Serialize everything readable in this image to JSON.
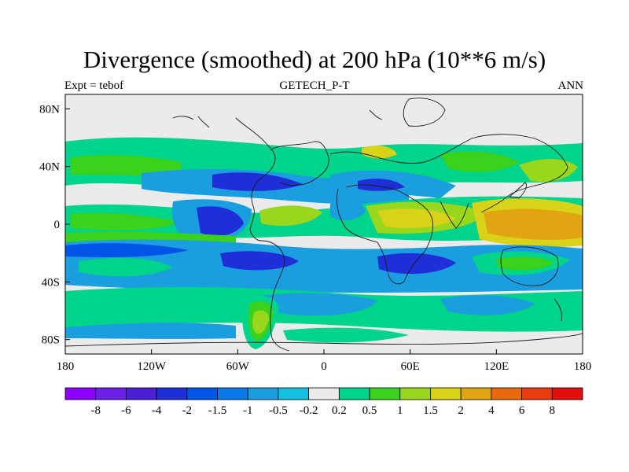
{
  "title": "Divergence (smoothed) at 200 hPa (10**6 m/s)",
  "subtitle": {
    "left": "Expt = tebof",
    "center": "GETECH_P-T",
    "right": "ANN"
  },
  "chart_data": {
    "type": "heatmap",
    "projection": "cylindrical-equidistant",
    "variable": "Divergence (smoothed)",
    "level": "200 hPa",
    "units": "10**6 m/s",
    "lon_range": [
      -180,
      180
    ],
    "lat_range": [
      -90,
      90
    ],
    "x_ticks": [
      {
        "value": -180,
        "label": "180"
      },
      {
        "value": -120,
        "label": "120W"
      },
      {
        "value": -60,
        "label": "60W"
      },
      {
        "value": 0,
        "label": "0"
      },
      {
        "value": 60,
        "label": "60E"
      },
      {
        "value": 120,
        "label": "120E"
      },
      {
        "value": 180,
        "label": "180"
      }
    ],
    "y_ticks": [
      {
        "value": 80,
        "label": "80N"
      },
      {
        "value": 40,
        "label": "40N"
      },
      {
        "value": 0,
        "label": "0"
      },
      {
        "value": -40,
        "label": "40S"
      },
      {
        "value": -80,
        "label": "80S"
      }
    ],
    "colorbar": {
      "levels": [
        "-8",
        "-6",
        "-4",
        "-2",
        "-1.5",
        "-1",
        "-0.5",
        "-0.2",
        "0.2",
        "0.5",
        "1",
        "1.5",
        "2",
        "4",
        "6",
        "8"
      ],
      "colors": [
        "#8b00ff",
        "#6a1ee6",
        "#4a1fd6",
        "#1e2fd8",
        "#0055e6",
        "#0a7ae6",
        "#1a9ee0",
        "#14bfe0",
        "#ebebeb",
        "#00d38a",
        "#3ad21c",
        "#99d61e",
        "#d8d219",
        "#e2a512",
        "#e86a0d",
        "#e83b10",
        "#e30e0e"
      ]
    },
    "regions": [
      {
        "lon": -150,
        "lat": 25,
        "rx": 38,
        "ry": 8,
        "class": "0.5"
      },
      {
        "lon": -95,
        "lat": 30,
        "rx": 35,
        "ry": 7,
        "class": "-1"
      },
      {
        "lon": -70,
        "lat": 30,
        "rx": 20,
        "ry": 6,
        "class": "-2"
      },
      {
        "lon": -55,
        "lat": 25,
        "rx": 14,
        "ry": 6,
        "class": "-2"
      },
      {
        "lon": 20,
        "lat": 20,
        "rx": 40,
        "ry": 6,
        "class": "-1"
      },
      {
        "lon": 10,
        "lat": 22,
        "rx": 15,
        "ry": 4,
        "class": "-2"
      },
      {
        "lon": 40,
        "lat": 5,
        "rx": 30,
        "ry": 10,
        "class": "1"
      },
      {
        "lon": 130,
        "lat": 0,
        "rx": 40,
        "ry": 15,
        "class": "1.5"
      },
      {
        "lon": 140,
        "lat": 0,
        "rx": 25,
        "ry": 10,
        "class": "2"
      },
      {
        "lon": -80,
        "lat": 0,
        "rx": 28,
        "ry": 8,
        "class": "-1"
      },
      {
        "lon": -70,
        "lat": 0,
        "rx": 12,
        "ry": 5,
        "class": "-2"
      },
      {
        "lon": -25,
        "lat": 5,
        "rx": 30,
        "ry": 6,
        "class": "0.5"
      },
      {
        "lon": -155,
        "lat": -15,
        "rx": 30,
        "ry": 5,
        "class": "-1"
      },
      {
        "lon": -45,
        "lat": -25,
        "rx": 35,
        "ry": 7,
        "class": "-1"
      },
      {
        "lon": 55,
        "lat": -28,
        "rx": 30,
        "ry": 6,
        "class": "-1"
      },
      {
        "lon": 55,
        "lat": -28,
        "rx": 15,
        "ry": 4,
        "class": "-2"
      },
      {
        "lon": 150,
        "lat": -28,
        "rx": 30,
        "ry": 6,
        "class": "0.5"
      },
      {
        "lon": -45,
        "lat": -65,
        "rx": 12,
        "ry": 14,
        "class": "1"
      },
      {
        "lon": 150,
        "lat": 40,
        "rx": 20,
        "ry": 8,
        "class": "1"
      },
      {
        "lon": 50,
        "lat": 45,
        "rx": 20,
        "ry": 8,
        "class": "1"
      }
    ]
  }
}
